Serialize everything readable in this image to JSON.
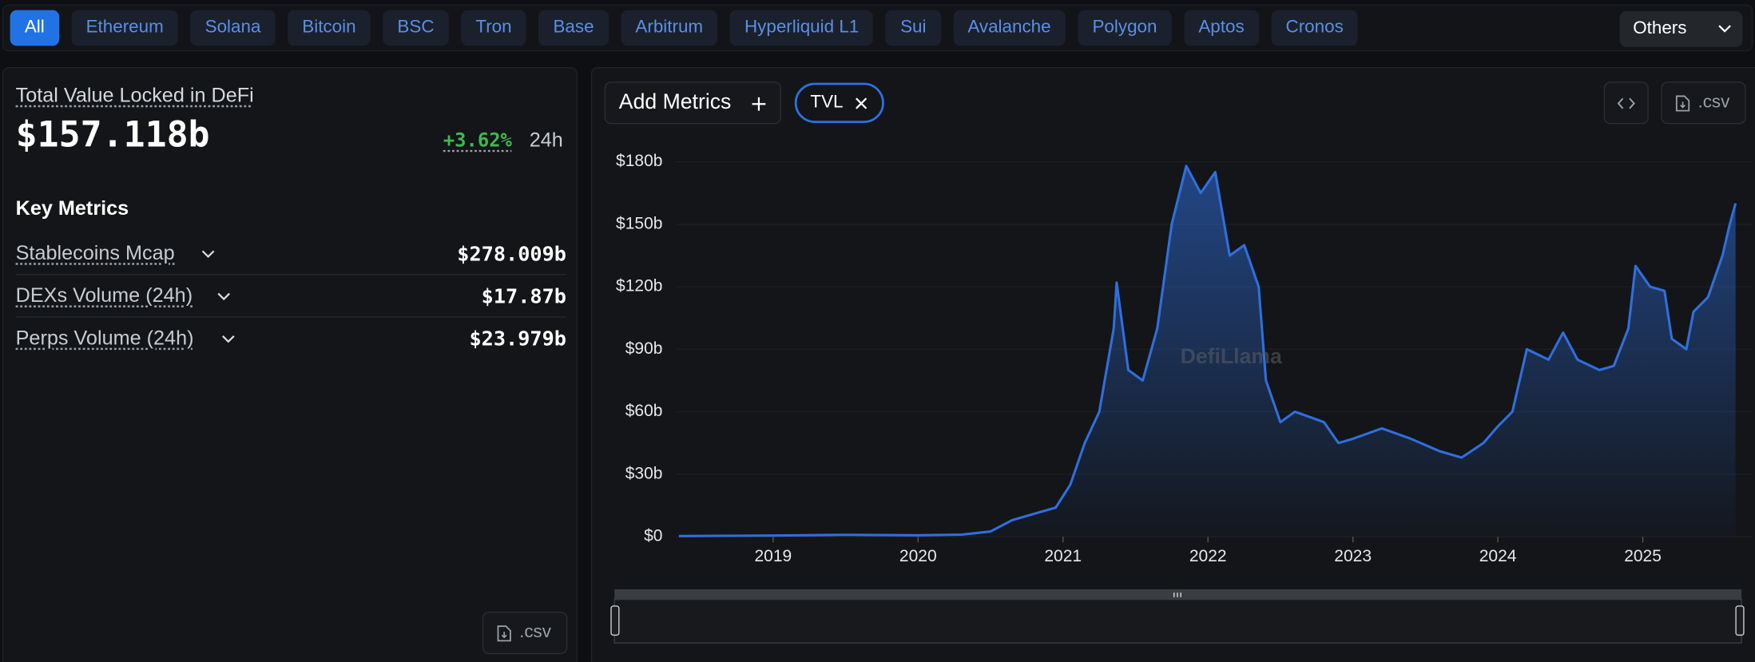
{
  "tabs": [
    "All",
    "Ethereum",
    "Solana",
    "Bitcoin",
    "BSC",
    "Tron",
    "Base",
    "Arbitrum",
    "Hyperliquid L1",
    "Sui",
    "Avalanche",
    "Polygon",
    "Aptos",
    "Cronos"
  ],
  "others": "Others",
  "summary": {
    "title": "Total Value Locked in DeFi",
    "value": "$157.118b",
    "change": "+3.62%",
    "period": "24h"
  },
  "key_metrics": {
    "title": "Key Metrics",
    "items": [
      {
        "label": "Stablecoins Mcap",
        "value": "$278.009b"
      },
      {
        "label": "DEXs Volume (24h)",
        "value": "$17.87b"
      },
      {
        "label": "Perps Volume (24h)",
        "value": "$23.979b"
      }
    ]
  },
  "left_csv": ".csv",
  "toolbar": {
    "add_metrics": "Add Metrics",
    "csv": ".csv"
  },
  "watermark": "DefiLlama",
  "chart_data": {
    "type": "area",
    "x": [
      2018.35,
      2018.75,
      2019.0,
      2019.5,
      2020.0,
      2020.3,
      2020.5,
      2020.65,
      2020.8,
      2020.95,
      2021.05,
      2021.15,
      2021.25,
      2021.35,
      2021.37,
      2021.45,
      2021.55,
      2021.65,
      2021.75,
      2021.85,
      2021.95,
      2022.05,
      2022.15,
      2022.25,
      2022.35,
      2022.4,
      2022.5,
      2022.6,
      2022.8,
      2022.9,
      2023.0,
      2023.2,
      2023.4,
      2023.6,
      2023.75,
      2023.9,
      2024.0,
      2024.1,
      2024.2,
      2024.35,
      2024.45,
      2024.55,
      2024.7,
      2024.8,
      2024.9,
      2024.95,
      2025.05,
      2025.15,
      2025.2,
      2025.3,
      2025.35,
      2025.45,
      2025.55,
      2025.6,
      2025.64
    ],
    "series": [
      {
        "name": "TVL",
        "color": "#2f6fde",
        "values": [
          0.3,
          0.5,
          0.6,
          0.9,
          0.7,
          1,
          2.5,
          8,
          11,
          14,
          25,
          45,
          60,
          100,
          122,
          80,
          75,
          100,
          150,
          178,
          165,
          175,
          135,
          140,
          120,
          75,
          55,
          60,
          55,
          45,
          47,
          52,
          47,
          41,
          38,
          45,
          53,
          60,
          90,
          85,
          98,
          85,
          80,
          82,
          100,
          130,
          120,
          118,
          95,
          90,
          108,
          115,
          135,
          150,
          160
        ]
      }
    ],
    "xlim": [
      2018.33,
      2025.65
    ],
    "xticks": [
      2019,
      2020,
      2021,
      2022,
      2023,
      2024,
      2025
    ],
    "ylim": [
      0,
      190
    ],
    "yticks": [
      {
        "value": 0,
        "label": "$0"
      },
      {
        "value": 30,
        "label": "$30b"
      },
      {
        "value": 60,
        "label": "$60b"
      },
      {
        "value": 90,
        "label": "$90b"
      },
      {
        "value": 120,
        "label": "$120b"
      },
      {
        "value": 150,
        "label": "$150b"
      },
      {
        "value": 180,
        "label": "$180b"
      }
    ],
    "grid": true
  }
}
